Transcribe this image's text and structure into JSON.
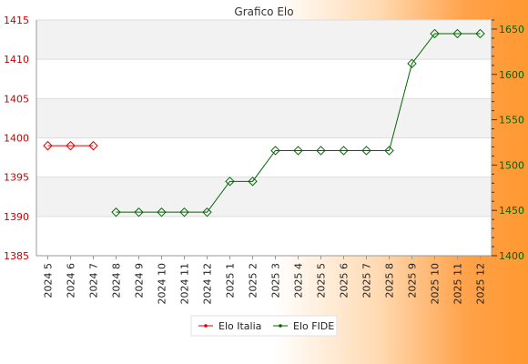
{
  "chart_data": {
    "type": "line",
    "title": "Grafico Elo",
    "categories": [
      "2024 5",
      "2024 6",
      "2024 7",
      "2024 8",
      "2024 9",
      "2024 10",
      "2024 11",
      "2024 12",
      "2025 1",
      "2025 2",
      "2025 3",
      "2025 4",
      "2025 5",
      "2025 6",
      "2025 7",
      "2025 8",
      "2025 9",
      "2025 10",
      "2025 11",
      "2025 12"
    ],
    "y_left": {
      "ylim": [
        1385,
        1415
      ],
      "ticks": [
        1385,
        1390,
        1395,
        1400,
        1405,
        1410,
        1415
      ],
      "color": "#cc0000"
    },
    "y_right": {
      "ylim": [
        1400,
        1660
      ],
      "ticks": [
        1400,
        1450,
        1500,
        1550,
        1600,
        1650
      ],
      "color": "#006600"
    },
    "series": [
      {
        "name": "Elo Italia",
        "axis": "left",
        "color": "#dd0000",
        "values": [
          1399,
          1399,
          1399,
          null,
          null,
          null,
          null,
          null,
          null,
          null,
          null,
          null,
          null,
          null,
          null,
          null,
          null,
          null,
          null,
          null
        ]
      },
      {
        "name": "Elo FIDE",
        "axis": "right",
        "color": "#006600",
        "values": [
          null,
          null,
          null,
          1448,
          1448,
          1448,
          1448,
          1448,
          1482,
          1482,
          1516,
          1516,
          1516,
          1516,
          1516,
          1516,
          1612,
          1645,
          1645,
          1645
        ]
      }
    ],
    "grid": true,
    "legend": "bottom-center"
  }
}
